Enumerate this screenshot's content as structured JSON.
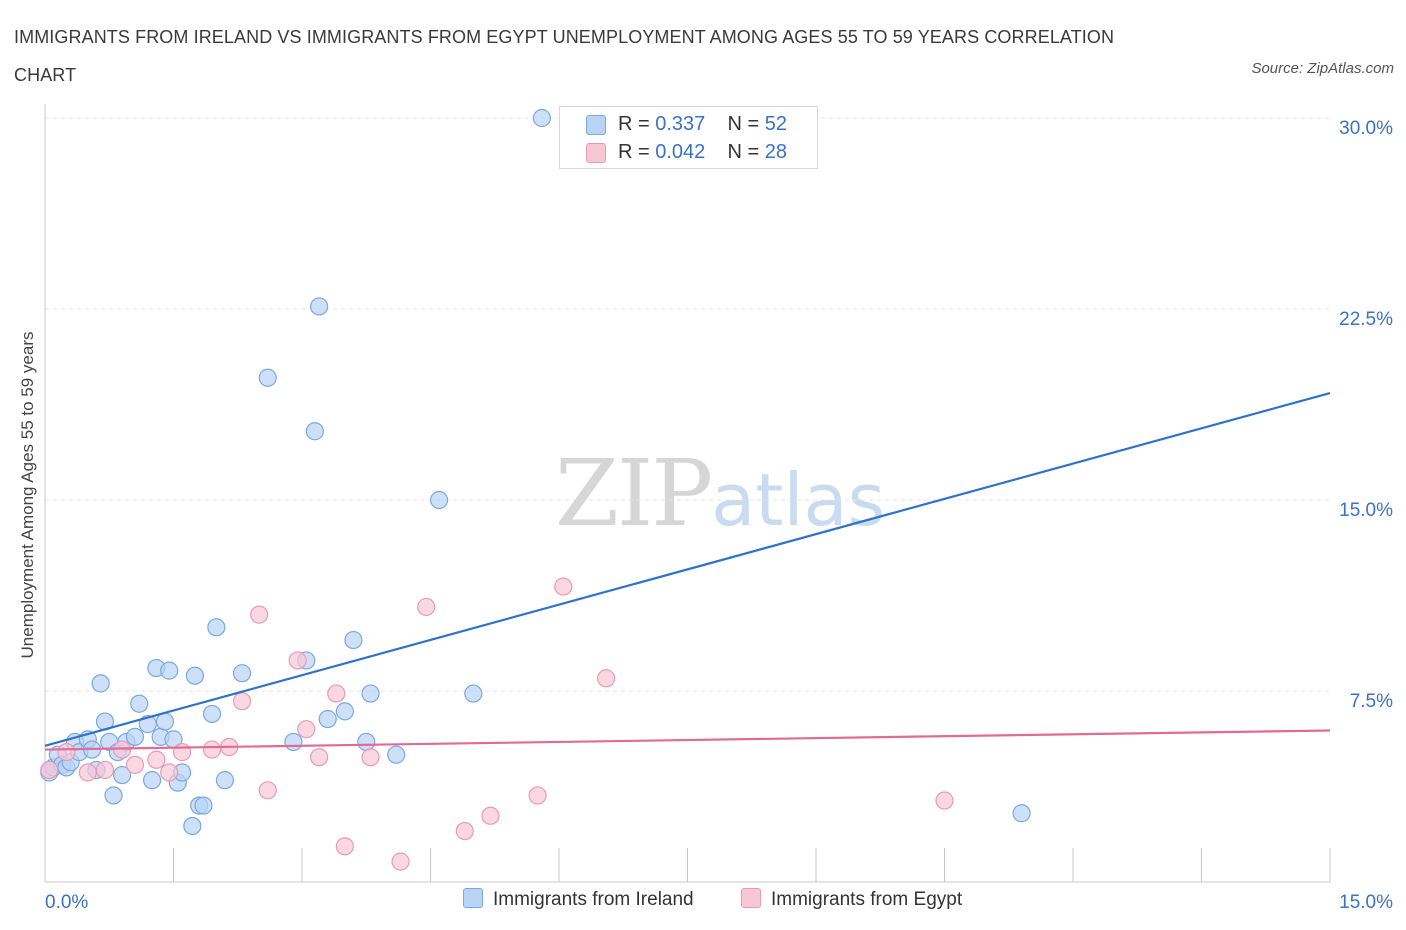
{
  "title": "IMMIGRANTS FROM IRELAND VS IMMIGRANTS FROM EGYPT UNEMPLOYMENT AMONG AGES 55 TO 59 YEARS CORRELATION CHART",
  "source": "Source: ZipAtlas.com",
  "watermark": {
    "zip": "ZIP",
    "atlas": "atlas"
  },
  "legend": {
    "ireland": {
      "r_label": "R = ",
      "r_value": "0.337",
      "n_label": "N = ",
      "n_value": "52"
    },
    "egypt": {
      "r_label": "R = ",
      "r_value": "0.042",
      "n_label": "N = ",
      "n_value": "28"
    }
  },
  "colors": {
    "ireland_fill": "#b9d3f5",
    "ireland_stroke": "#7aa8e0",
    "ireland_line": "#2e72c9",
    "egypt_fill": "#f8c7d6",
    "egypt_stroke": "#ea9ab4",
    "egypt_line": "#e06b95",
    "tick_label": "#3a72c4",
    "grid": "#e3e3e3"
  },
  "chart_data": {
    "type": "scatter",
    "title": "IMMIGRANTS FROM IRELAND VS IMMIGRANTS FROM EGYPT UNEMPLOYMENT AMONG AGES 55 TO 59 YEARS CORRELATION CHART",
    "xlabel": "",
    "ylabel": "Unemployment Among Ages 55 to 59 years",
    "xlim": [
      0,
      15
    ],
    "ylim": [
      0,
      30
    ],
    "x_ticks": [
      0,
      15
    ],
    "x_tick_labels": [
      "0.0%",
      "15.0%"
    ],
    "y_ticks": [
      7.5,
      15,
      22.5,
      30
    ],
    "y_tick_labels": [
      "7.5%",
      "15.0%",
      "22.5%",
      "30.0%"
    ],
    "grid": true,
    "legend_position": "top-center",
    "series": [
      {
        "name": "Immigrants from Ireland",
        "color": "#b9d3f5",
        "points": [
          [
            0.05,
            4.3
          ],
          [
            0.1,
            4.5
          ],
          [
            0.15,
            5.0
          ],
          [
            0.2,
            4.6
          ],
          [
            0.25,
            4.5
          ],
          [
            0.3,
            4.7
          ],
          [
            0.35,
            5.5
          ],
          [
            0.4,
            5.1
          ],
          [
            0.5,
            5.6
          ],
          [
            0.55,
            5.2
          ],
          [
            0.6,
            4.4
          ],
          [
            0.65,
            7.8
          ],
          [
            0.7,
            6.3
          ],
          [
            0.75,
            5.5
          ],
          [
            0.8,
            3.4
          ],
          [
            0.85,
            5.1
          ],
          [
            0.9,
            4.2
          ],
          [
            0.95,
            5.5
          ],
          [
            1.05,
            5.7
          ],
          [
            1.1,
            7.0
          ],
          [
            1.2,
            6.2
          ],
          [
            1.25,
            4.0
          ],
          [
            1.3,
            8.4
          ],
          [
            1.35,
            5.7
          ],
          [
            1.4,
            6.3
          ],
          [
            1.45,
            8.3
          ],
          [
            1.5,
            5.6
          ],
          [
            1.55,
            3.9
          ],
          [
            1.6,
            4.3
          ],
          [
            1.72,
            2.2
          ],
          [
            1.75,
            8.1
          ],
          [
            1.8,
            3.0
          ],
          [
            1.85,
            3.0
          ],
          [
            1.95,
            6.6
          ],
          [
            2.0,
            10.0
          ],
          [
            2.1,
            4.0
          ],
          [
            2.3,
            8.2
          ],
          [
            2.6,
            19.8
          ],
          [
            2.9,
            5.5
          ],
          [
            3.05,
            8.7
          ],
          [
            3.15,
            17.7
          ],
          [
            3.2,
            22.6
          ],
          [
            3.3,
            6.4
          ],
          [
            3.5,
            6.7
          ],
          [
            3.6,
            9.5
          ],
          [
            3.75,
            5.5
          ],
          [
            3.8,
            7.4
          ],
          [
            4.1,
            5.0
          ],
          [
            4.6,
            15.0
          ],
          [
            5.0,
            7.4
          ],
          [
            5.8,
            30.0
          ],
          [
            11.4,
            2.7
          ]
        ]
      },
      {
        "name": "Immigrants from Egypt",
        "color": "#f8c7d6",
        "points": [
          [
            0.05,
            4.4
          ],
          [
            0.25,
            5.1
          ],
          [
            0.5,
            4.3
          ],
          [
            0.7,
            4.4
          ],
          [
            0.9,
            5.2
          ],
          [
            1.05,
            4.6
          ],
          [
            1.3,
            4.8
          ],
          [
            1.45,
            4.3
          ],
          [
            1.6,
            5.1
          ],
          [
            1.95,
            5.2
          ],
          [
            2.15,
            5.3
          ],
          [
            2.3,
            7.1
          ],
          [
            2.5,
            10.5
          ],
          [
            2.6,
            3.6
          ],
          [
            2.95,
            8.7
          ],
          [
            3.05,
            6.0
          ],
          [
            3.2,
            4.9
          ],
          [
            3.4,
            7.4
          ],
          [
            3.5,
            1.4
          ],
          [
            3.8,
            4.9
          ],
          [
            4.15,
            0.8
          ],
          [
            4.45,
            10.8
          ],
          [
            4.9,
            2.0
          ],
          [
            5.2,
            2.6
          ],
          [
            5.75,
            3.4
          ],
          [
            6.05,
            11.6
          ],
          [
            6.55,
            8.0
          ],
          [
            10.5,
            3.2
          ]
        ]
      }
    ],
    "trend_lines": [
      {
        "series": "Immigrants from Ireland",
        "x": [
          0,
          15
        ],
        "y": [
          5.35,
          19.2
        ]
      },
      {
        "series": "Immigrants from Egypt",
        "x": [
          0,
          15
        ],
        "y": [
          5.2,
          5.95
        ]
      }
    ]
  },
  "bottom_legend": {
    "ireland": "Immigrants from Ireland",
    "egypt": "Immigrants from Egypt"
  }
}
